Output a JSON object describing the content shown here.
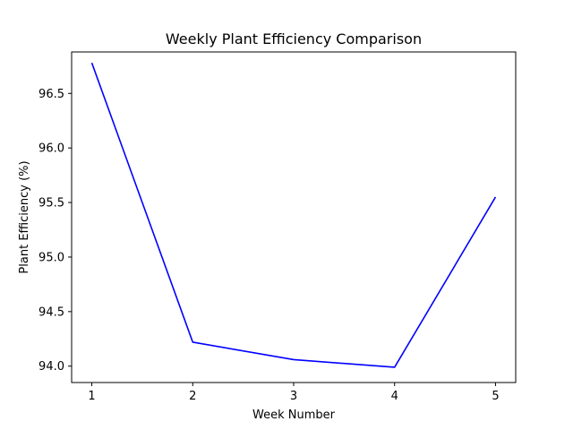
{
  "chart_data": {
    "type": "line",
    "title": "Weekly Plant Efficiency Comparison",
    "xlabel": "Week Number",
    "ylabel": "Plant Efficiency (%)",
    "x": [
      1,
      2,
      3,
      4,
      5
    ],
    "x_ticks": [
      "1",
      "2",
      "3",
      "4",
      "5"
    ],
    "y_ticks": [
      "94.0",
      "94.5",
      "95.0",
      "95.5",
      "96.0",
      "96.5"
    ],
    "y_tick_values": [
      94.0,
      94.5,
      95.0,
      95.5,
      96.0,
      96.5
    ],
    "xlim": [
      0.8,
      5.2
    ],
    "ylim": [
      93.85,
      96.88
    ],
    "grid": false,
    "series": [
      {
        "values": [
          96.78,
          94.22,
          94.06,
          93.99,
          95.55
        ],
        "color": "#0000ff"
      }
    ]
  }
}
